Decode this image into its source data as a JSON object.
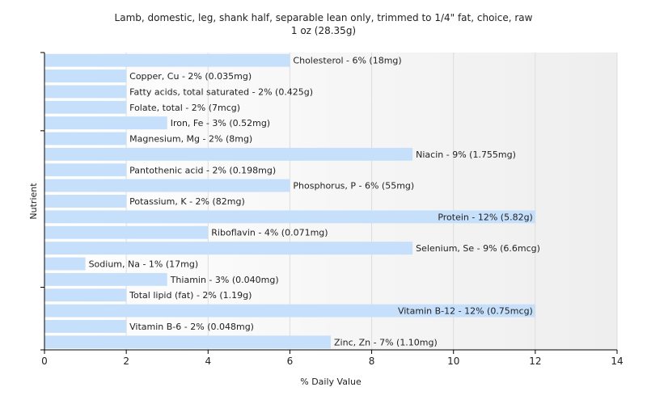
{
  "chart_data": {
    "type": "bar",
    "orientation": "horizontal",
    "title": "Lamb, domestic, leg, shank half, separable lean only, trimmed to 1/4\" fat, choice, raw",
    "subtitle": "1 oz (28.35g)",
    "xlabel": "% Daily Value",
    "ylabel": "Nutrient",
    "xlim": [
      0,
      14
    ],
    "xticks": [
      0,
      2,
      4,
      6,
      8,
      10,
      12,
      14
    ],
    "grid": true,
    "bar_color": "#c6dffa",
    "categories": [
      "Cholesterol",
      "Copper, Cu",
      "Fatty acids, total saturated",
      "Folate, total",
      "Iron, Fe",
      "Magnesium, Mg",
      "Niacin",
      "Pantothenic acid",
      "Phosphorus, P",
      "Potassium, K",
      "Protein",
      "Riboflavin",
      "Selenium, Se",
      "Sodium, Na",
      "Thiamin",
      "Total lipid (fat)",
      "Vitamin B-12",
      "Vitamin B-6",
      "Zinc, Zn"
    ],
    "values": [
      6,
      2,
      2,
      2,
      3,
      2,
      9,
      2,
      6,
      2,
      12,
      4,
      9,
      1,
      3,
      2,
      12,
      2,
      7
    ],
    "labels": [
      "Cholesterol - 6% (18mg)",
      "Copper, Cu - 2% (0.035mg)",
      "Fatty acids, total saturated - 2% (0.425g)",
      "Folate, total - 2% (7mcg)",
      "Iron, Fe - 3% (0.52mg)",
      "Magnesium, Mg - 2% (8mg)",
      "Niacin - 9% (1.755mg)",
      "Pantothenic acid - 2% (0.198mg)",
      "Phosphorus, P - 6% (55mg)",
      "Potassium, K - 2% (82mg)",
      "Protein - 12% (5.82g)",
      "Riboflavin - 4% (0.071mg)",
      "Selenium, Se - 9% (6.6mcg)",
      "Sodium, Na - 1% (17mg)",
      "Thiamin - 3% (0.040mg)",
      "Total lipid (fat) - 2% (1.19g)",
      "Vitamin B-12 - 12% (0.75mcg)",
      "Vitamin B-6 - 2% (0.048mg)",
      "Zinc, Zn - 7% (1.10mg)"
    ]
  }
}
